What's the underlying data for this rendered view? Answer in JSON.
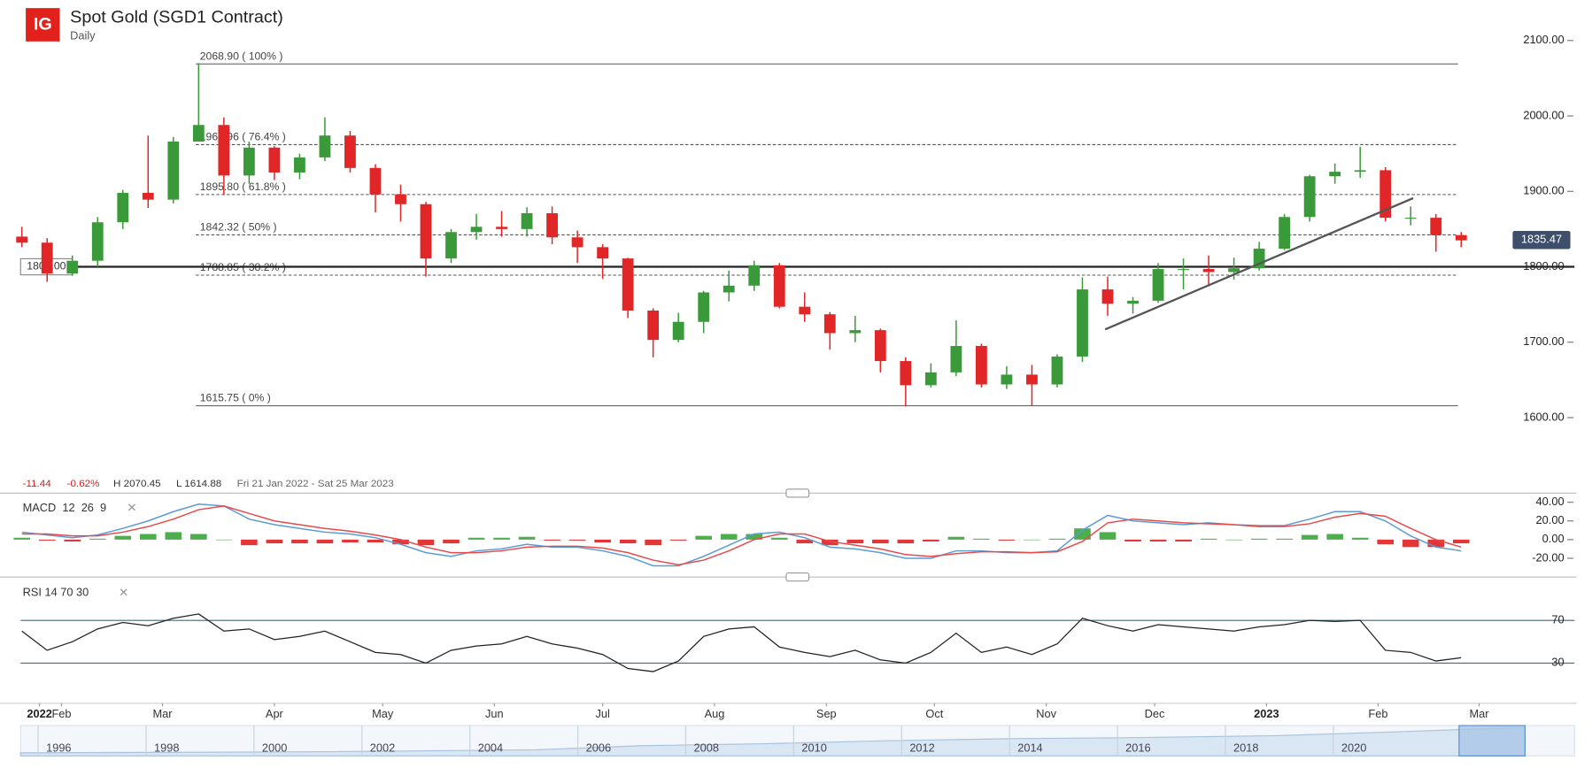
{
  "header": {
    "logo": "IG",
    "title": "Spot Gold (SGD1 Contract)",
    "interval": "Daily"
  },
  "info": {
    "change": -11.44,
    "change_pct": "-0.62%",
    "high": "H 2070.45",
    "low": "L 1614.88",
    "range": "Fri 21 Jan 2022 - Sat 25 Mar 2023"
  },
  "chart_data": [
    {
      "type": "candlestick",
      "x": [
        0,
        1,
        2,
        3,
        4,
        5,
        6,
        7,
        8,
        9,
        10,
        11,
        12,
        13,
        14,
        15,
        16,
        17,
        18,
        19,
        20,
        21,
        22,
        23,
        24,
        25,
        26,
        27,
        28,
        29,
        30,
        31,
        32,
        33,
        34,
        35,
        36,
        37,
        38,
        39,
        40,
        41,
        42,
        43,
        44,
        45,
        46,
        47,
        48,
        49,
        50,
        51,
        52,
        53,
        54,
        55,
        56,
        57
      ],
      "open": [
        1840,
        1832,
        1791,
        1808,
        1859,
        1898,
        1889,
        1966,
        1988,
        1921,
        1958,
        1925,
        1945,
        1974,
        1931,
        1896,
        1883,
        1811,
        1846,
        1853,
        1850,
        1871,
        1839,
        1826,
        1811,
        1742,
        1703,
        1727,
        1766,
        1775,
        1802,
        1747,
        1737,
        1712,
        1716,
        1675,
        1643,
        1660,
        1695,
        1644,
        1657,
        1644,
        1681,
        1770,
        1751,
        1755,
        1797,
        1797,
        1793,
        1798,
        1824,
        1866,
        1920,
        1926,
        1928,
        1865,
        1865,
        1842
      ],
      "high": [
        1853,
        1838,
        1815,
        1866,
        1902,
        1974,
        1972,
        2070,
        1998,
        1966,
        1960,
        1950,
        1998,
        1980,
        1936,
        1909,
        1886,
        1850,
        1870,
        1874,
        1879,
        1880,
        1848,
        1830,
        1812,
        1745,
        1739,
        1768,
        1795,
        1808,
        1805,
        1766,
        1740,
        1735,
        1718,
        1680,
        1672,
        1729,
        1698,
        1668,
        1670,
        1684,
        1786,
        1787,
        1760,
        1805,
        1811,
        1815,
        1812,
        1833,
        1870,
        1922,
        1937,
        1959,
        1932,
        1880,
        1870,
        1846
      ],
      "low": [
        1826,
        1780,
        1788,
        1800,
        1850,
        1878,
        1884,
        1966,
        1895,
        1910,
        1915,
        1916,
        1940,
        1925,
        1872,
        1860,
        1787,
        1805,
        1836,
        1840,
        1840,
        1830,
        1805,
        1784,
        1732,
        1680,
        1700,
        1712,
        1754,
        1768,
        1745,
        1727,
        1690,
        1700,
        1660,
        1615,
        1640,
        1655,
        1640,
        1638,
        1616,
        1640,
        1674,
        1735,
        1738,
        1752,
        1770,
        1774,
        1783,
        1795,
        1822,
        1860,
        1910,
        1918,
        1860,
        1855,
        1820,
        1826
      ],
      "close": [
        1832,
        1791,
        1808,
        1859,
        1898,
        1889,
        1966,
        1988,
        1921,
        1958,
        1925,
        1945,
        1974,
        1931,
        1896,
        1883,
        1811,
        1846,
        1853,
        1850,
        1871,
        1839,
        1826,
        1811,
        1742,
        1703,
        1727,
        1766,
        1775,
        1802,
        1747,
        1737,
        1712,
        1716,
        1675,
        1643,
        1660,
        1695,
        1644,
        1657,
        1644,
        1681,
        1770,
        1751,
        1755,
        1797,
        1797,
        1793,
        1798,
        1824,
        1866,
        1920,
        1926,
        1928,
        1865,
        1865,
        1842,
        1835
      ],
      "up_color": "#3a9a3a",
      "down_color": "#e02626",
      "xlim": [
        -0.05,
        58.1
      ],
      "ylim": [
        1524,
        2147
      ],
      "xticks": [
        {
          "value": 0.7,
          "label": "2022"
        },
        {
          "value": 1.57,
          "label": "Feb"
        },
        {
          "value": 5.57,
          "label": "Mar"
        },
        {
          "value": 10,
          "label": "Apr"
        },
        {
          "value": 14.29,
          "label": "May"
        },
        {
          "value": 18.71,
          "label": "Jun"
        },
        {
          "value": 23,
          "label": "Jul"
        },
        {
          "value": 27.43,
          "label": "Aug"
        },
        {
          "value": 31.86,
          "label": "Sep"
        },
        {
          "value": 36.14,
          "label": "Oct"
        },
        {
          "value": 40.57,
          "label": "Nov"
        },
        {
          "value": 44.86,
          "label": "Dec"
        },
        {
          "value": 49.29,
          "label": "2023"
        },
        {
          "value": 53.71,
          "label": "Feb"
        },
        {
          "value": 57.71,
          "label": "Mar"
        }
      ],
      "yticks": [
        {
          "value": 1600,
          "label": "1600.00"
        },
        {
          "value": 1700,
          "label": "1700.00"
        },
        {
          "value": 1800,
          "label": "1800.00"
        },
        {
          "value": 1900,
          "label": "1900.00"
        },
        {
          "value": 2000,
          "label": "2000.00"
        },
        {
          "value": 2100,
          "label": "2100.00"
        }
      ],
      "levels": [
        {
          "value": 2068.9,
          "label": "2068.90 ( 100% )",
          "style": "solid"
        },
        {
          "value": 1961.96,
          "label": "1961.96 ( 76.4% )",
          "style": "dashed"
        },
        {
          "value": 1895.8,
          "label": "1895.80 ( 61.8% )",
          "style": "dashed"
        },
        {
          "value": 1842.32,
          "label": "1842.32 ( 50% )",
          "style": "dashed"
        },
        {
          "value": 1788.85,
          "label": "1788.85 ( 38.2% )",
          "style": "dashed"
        },
        {
          "value": 1615.75,
          "label": "1615.75 ( 0% )",
          "style": "solid"
        }
      ],
      "horizontal_line": {
        "value": 1800,
        "label": "1800.00"
      },
      "last_price": {
        "value": 1835.47,
        "label": "1835.47",
        "color": "#3d4f6b"
      },
      "trendline": {
        "x": [
          42.9,
          55.1
        ],
        "y": [
          1717,
          1891
        ],
        "color": "#555555"
      }
    },
    {
      "type": "macd",
      "title": "MACD  12  26  9",
      "ylim": [
        -36.8,
        47.6
      ],
      "yticks": [
        {
          "value": 40,
          "label": "40.00"
        },
        {
          "value": 20,
          "label": "20.00"
        },
        {
          "value": 0,
          "label": "0.00"
        },
        {
          "value": -20,
          "label": "-20.00"
        }
      ],
      "histogram": {
        "up_color": "#3aa53a",
        "down_color": "#e02020",
        "values": [
          2,
          -1,
          -2,
          1,
          4,
          6,
          8,
          6,
          0,
          -6,
          -4,
          -4,
          -4,
          -3,
          -3,
          -5,
          -6,
          -4,
          2,
          2,
          3,
          -1,
          -1,
          -3,
          -4,
          -6,
          -1,
          4,
          6,
          6,
          2,
          -4,
          -6,
          -4,
          -4,
          -4,
          -2,
          3,
          1,
          -1,
          0,
          1,
          12,
          8,
          -2,
          -2,
          -2,
          1,
          0,
          1,
          1,
          5,
          6,
          2,
          -5,
          -8,
          -8,
          -4
        ]
      },
      "series": [
        {
          "color": "#5b9bd5",
          "values": [
            8,
            5,
            2,
            5,
            12,
            20,
            30,
            38,
            36,
            22,
            16,
            12,
            8,
            6,
            2,
            -5,
            -14,
            -18,
            -12,
            -10,
            -5,
            -8,
            -8,
            -12,
            -18,
            -28,
            -28,
            -18,
            -6,
            6,
            8,
            2,
            -8,
            -10,
            -14,
            -20,
            -20,
            -12,
            -12,
            -14,
            -14,
            -12,
            10,
            26,
            20,
            18,
            16,
            18,
            16,
            15,
            15,
            22,
            30,
            30,
            20,
            4,
            -8,
            -12
          ]
        },
        {
          "color": "#e84a4a",
          "values": [
            6,
            6,
            4,
            4,
            8,
            14,
            22,
            32,
            36,
            28,
            20,
            16,
            12,
            9,
            5,
            0,
            -8,
            -14,
            -14,
            -12,
            -8,
            -7,
            -7,
            -9,
            -14,
            -22,
            -27,
            -22,
            -12,
            0,
            6,
            6,
            -2,
            -6,
            -10,
            -16,
            -18,
            -15,
            -13,
            -13,
            -14,
            -13,
            -2,
            18,
            22,
            20,
            18,
            17,
            16,
            14,
            14,
            17,
            24,
            28,
            25,
            12,
            0,
            -8
          ]
        }
      ]
    },
    {
      "type": "rsi",
      "title": "RSI  14  70  30",
      "ylim": [
        -2,
        104
      ],
      "yticks": [
        70,
        30
      ],
      "band_color": "#2a6f9e",
      "series": [
        {
          "color": "#222222",
          "values": [
            60,
            42,
            50,
            62,
            68,
            65,
            72,
            76,
            60,
            62,
            52,
            55,
            60,
            50,
            40,
            38,
            30,
            42,
            46,
            48,
            55,
            48,
            44,
            38,
            25,
            22,
            32,
            55,
            62,
            64,
            45,
            40,
            36,
            42,
            33,
            30,
            40,
            58,
            40,
            45,
            38,
            48,
            72,
            65,
            60,
            66,
            64,
            62,
            60,
            64,
            66,
            70,
            69,
            70,
            42,
            40,
            32,
            35
          ]
        }
      ]
    }
  ],
  "navigator": {
    "labels": [
      "1996",
      "1998",
      "2000",
      "2002",
      "2004",
      "2006",
      "2008",
      "2010",
      "2012",
      "2014",
      "2016",
      "2018",
      "2020"
    ]
  }
}
